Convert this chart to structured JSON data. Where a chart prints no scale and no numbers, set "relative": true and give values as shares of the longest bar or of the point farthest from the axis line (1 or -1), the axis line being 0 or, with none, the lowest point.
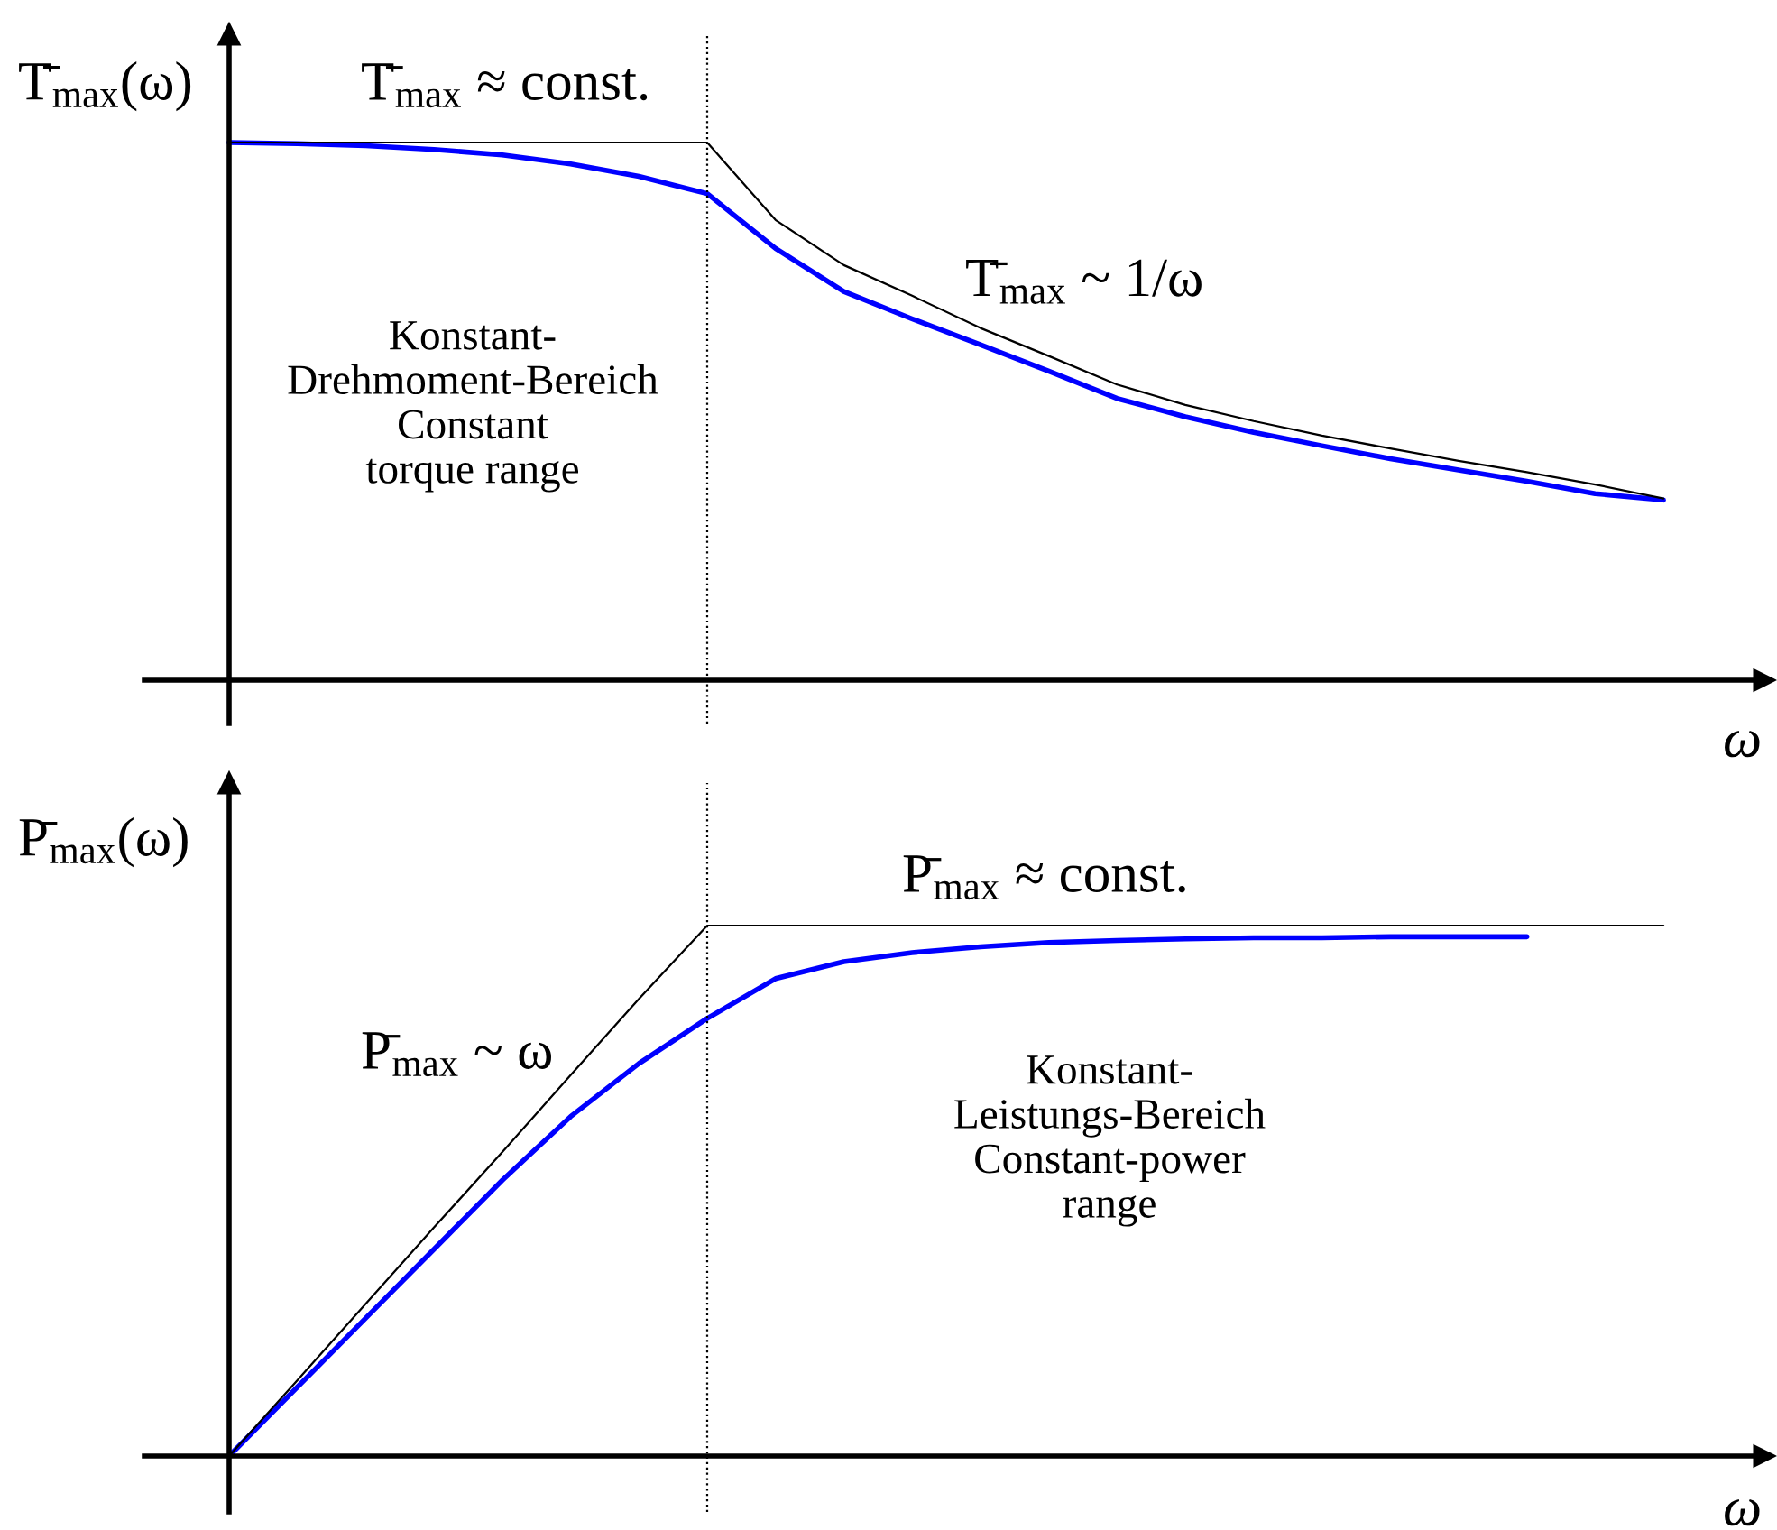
{
  "chart_data": [
    {
      "type": "line",
      "relative": true,
      "ylabel": "T̄$_{max}$(ω)",
      "xlabel": "ω",
      "categories": [
        null,
        null,
        null,
        null,
        null,
        null,
        null,
        null,
        null,
        null,
        null,
        null,
        null,
        null,
        null,
        null,
        null,
        null,
        null,
        null,
        null,
        null
      ],
      "series": [
        {
          "color": "#000000",
          "values": [
            1,
            1,
            1,
            1,
            1,
            1,
            1,
            1,
            0.856,
            0.772,
            0.715,
            0.655,
            0.603,
            0.55,
            0.512,
            0.482,
            0.455,
            0.431,
            0.408,
            0.387,
            0.364,
            0.338
          ]
        },
        {
          "color": "#0000ff",
          "values": [
            1,
            0.998,
            0.994,
            0.987,
            0.977,
            0.96,
            0.937,
            0.905,
            0.803,
            0.723,
            0.672,
            0.624,
            0.575,
            0.524,
            0.49,
            0.461,
            0.436,
            0.412,
            0.391,
            0.37,
            0.347,
            0.335
          ]
        }
      ],
      "annotations": [
        "T̄$_{max}$ ≈ const.",
        "T̄$_{max}$ ~ 1/ω",
        "Konstant-\nDrehmoment-Bereich\nConstant\ntorque range"
      ]
    },
    {
      "type": "line",
      "relative": true,
      "ylabel": "P̄$_{max}$(ω)",
      "xlabel": "ω",
      "categories": [
        null,
        null,
        null,
        null,
        null,
        null,
        null,
        null,
        null,
        null,
        null,
        null,
        null,
        null,
        null,
        null,
        null,
        null,
        null,
        null,
        null,
        null
      ],
      "series": [
        {
          "color": "#000000",
          "values": [
            0,
            0.143,
            0.287,
            0.431,
            0.573,
            0.718,
            0.862,
            1,
            1,
            1,
            1,
            1,
            1,
            1,
            1,
            1,
            1,
            1,
            1,
            1,
            1,
            1
          ]
        },
        {
          "color": "#0000ff",
          "values": [
            0,
            0.13,
            0.26,
            0.39,
            0.52,
            0.64,
            0.74,
            0.825,
            0.9,
            0.932,
            0.949,
            0.96,
            0.968,
            0.972,
            0.975,
            0.977,
            0.977,
            0.979,
            0.979,
            0.979,
            null,
            null
          ]
        }
      ],
      "annotations": [
        "P̄$_{max}$ ≈ const.",
        "P̄$_{max}$ ~ ω",
        "Konstant-\nLeistungs-Bereich\nConstant-power\nrange"
      ]
    }
  ]
}
